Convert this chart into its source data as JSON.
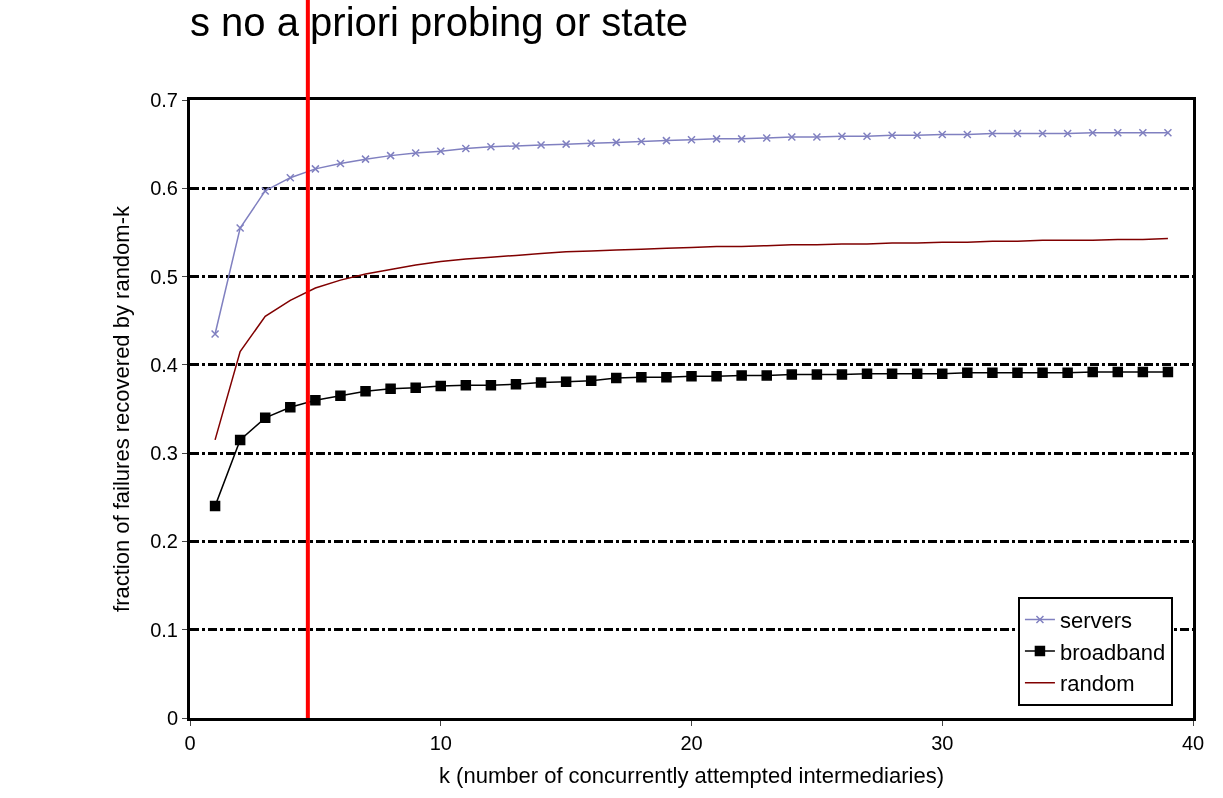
{
  "chart_data": {
    "type": "line",
    "title": "s no a priori probing or state",
    "xlabel": "k (number of concurrently attempted intermediaries)",
    "ylabel": "fraction of failures recovered by random-k",
    "x": [
      1,
      2,
      3,
      4,
      5,
      6,
      7,
      8,
      9,
      10,
      11,
      12,
      13,
      14,
      15,
      16,
      17,
      18,
      19,
      20,
      21,
      22,
      23,
      24,
      25,
      26,
      27,
      28,
      29,
      30,
      31,
      32,
      33,
      34,
      35,
      36,
      37,
      38,
      39
    ],
    "series": [
      {
        "name": "servers",
        "color": "#8080c0",
        "marker": "cross",
        "values": [
          0.435,
          0.555,
          0.597,
          0.612,
          0.622,
          0.628,
          0.633,
          0.637,
          0.64,
          0.642,
          0.645,
          0.647,
          0.648,
          0.649,
          0.65,
          0.651,
          0.652,
          0.653,
          0.654,
          0.655,
          0.656,
          0.656,
          0.657,
          0.658,
          0.658,
          0.659,
          0.659,
          0.66,
          0.66,
          0.661,
          0.661,
          0.662,
          0.662,
          0.662,
          0.662,
          0.663,
          0.663,
          0.663,
          0.663
        ]
      },
      {
        "name": "broadband",
        "color": "#000000",
        "marker": "square",
        "values": [
          0.24,
          0.315,
          0.34,
          0.352,
          0.36,
          0.365,
          0.37,
          0.373,
          0.374,
          0.376,
          0.377,
          0.377,
          0.378,
          0.38,
          0.381,
          0.382,
          0.385,
          0.386,
          0.386,
          0.387,
          0.387,
          0.388,
          0.388,
          0.389,
          0.389,
          0.389,
          0.39,
          0.39,
          0.39,
          0.39,
          0.391,
          0.391,
          0.391,
          0.391,
          0.391,
          0.392,
          0.392,
          0.392,
          0.392
        ]
      },
      {
        "name": "random",
        "color": "#800000",
        "marker": "none",
        "values": [
          0.315,
          0.415,
          0.455,
          0.473,
          0.487,
          0.496,
          0.503,
          0.508,
          0.513,
          0.517,
          0.52,
          0.522,
          0.524,
          0.526,
          0.528,
          0.529,
          0.53,
          0.531,
          0.532,
          0.533,
          0.534,
          0.534,
          0.535,
          0.536,
          0.536,
          0.537,
          0.537,
          0.538,
          0.538,
          0.539,
          0.539,
          0.54,
          0.54,
          0.541,
          0.541,
          0.541,
          0.542,
          0.542,
          0.543
        ]
      }
    ],
    "xlim": [
      0,
      40
    ],
    "xticks": [
      0,
      10,
      20,
      30,
      40
    ],
    "ylim": [
      0,
      0.7
    ],
    "yticks": [
      0,
      0.1,
      0.2,
      0.3,
      0.4,
      0.5,
      0.6,
      0.7
    ],
    "grid": "y",
    "legend": "bottom right",
    "ref_lines": [
      {
        "axis": "x",
        "value": 4.7,
        "color": "#ff0000"
      }
    ]
  }
}
